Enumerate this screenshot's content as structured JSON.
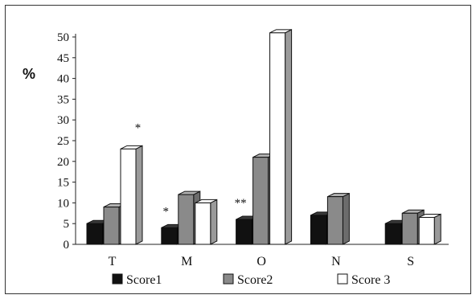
{
  "chart_data": {
    "type": "bar",
    "ylabel": "%",
    "ylim": [
      0,
      50
    ],
    "yticks": [
      0,
      5,
      10,
      15,
      20,
      25,
      30,
      35,
      40,
      45,
      50
    ],
    "categories": [
      "T",
      "M",
      "O",
      "N",
      "S"
    ],
    "series": [
      {
        "name": "Score1",
        "values": [
          5,
          4,
          6,
          7,
          5
        ]
      },
      {
        "name": "Score2",
        "values": [
          9,
          12,
          21,
          11.5,
          7.5
        ]
      },
      {
        "name": "Score 3",
        "values": [
          23,
          10,
          51,
          null,
          6.5
        ]
      }
    ],
    "annotations": [
      {
        "category": "T",
        "series": "Score 3",
        "text": "*"
      },
      {
        "category": "M",
        "series": "Score1",
        "text": "*"
      },
      {
        "category": "O",
        "series": "Score1",
        "text": "**"
      }
    ],
    "legend": "bottom",
    "grid": false
  },
  "colors": {
    "Score1": "#111111",
    "Score2": "#8a8a8a",
    "Score 3": "#ffffff"
  }
}
